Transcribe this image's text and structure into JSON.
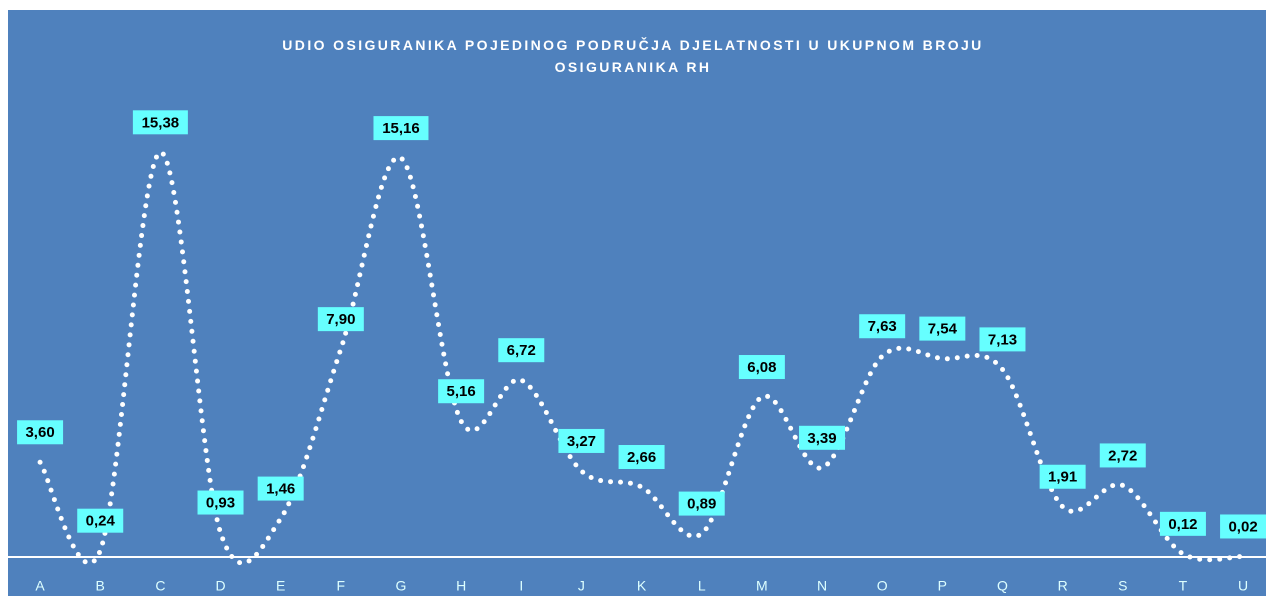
{
  "chart_data": {
    "type": "line",
    "title": "UDIO OSIGURANIKA POJEDINOG PODRUČJA DJELATNOSTI U UKUPNOM BROJU OSIGURANIKA RH",
    "categories": [
      "A",
      "B",
      "C",
      "D",
      "E",
      "F",
      "G",
      "H",
      "I",
      "J",
      "K",
      "L",
      "M",
      "N",
      "O",
      "P",
      "Q",
      "R",
      "S",
      "T",
      "U"
    ],
    "series": [
      {
        "color": "#ffffff",
        "values": [
          3.6,
          0.24,
          15.38,
          0.93,
          1.46,
          7.9,
          15.16,
          5.16,
          6.72,
          3.27,
          2.66,
          0.89,
          6.08,
          3.39,
          7.63,
          7.54,
          7.13,
          1.91,
          2.72,
          0.12,
          0.02
        ],
        "value_labels": [
          "3,60",
          "0,24",
          "15,38",
          "0,93",
          "1,46",
          "7,90",
          "15,16",
          "5,16",
          "6,72",
          "3,27",
          "2,66",
          "0,89",
          "6,08",
          "3,39",
          "7,63",
          "7,54",
          "7,13",
          "1,91",
          "2,72",
          "0,12",
          "0,02"
        ]
      }
    ],
    "ylim": [
      0,
      16
    ],
    "smooth": true,
    "label_color": "#66ffff",
    "background": "#4f81bd"
  }
}
